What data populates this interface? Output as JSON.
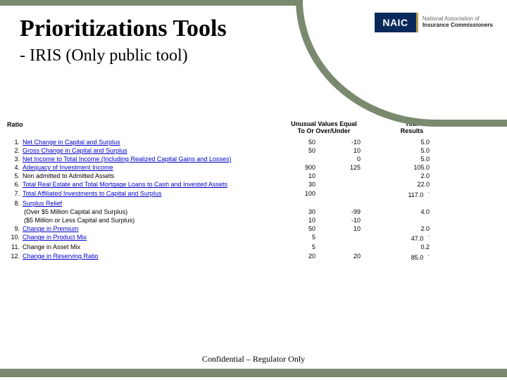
{
  "header": {
    "title": "Prioritizations Tools",
    "subtitle": "- IRIS (Only public tool)",
    "logo_mark": "NAIC",
    "logo_line1": "National Association of",
    "logo_line2": "Insurance Commissioners"
  },
  "table": {
    "ratio_label": "Ratio",
    "unusual_header_l1": "Unusual Values Equal",
    "unusual_header_l2": "To Or Over/Under",
    "results_header_l1": "Your",
    "results_header_l2": "Results",
    "rows": [
      {
        "num": "1.",
        "label": "Net Change in Capital and Surplus",
        "link": true,
        "over": "50",
        "under": "-10",
        "result": "5.0",
        "dash": false
      },
      {
        "num": "2.",
        "label": "Gross Change in Capital and Surplus",
        "link": true,
        "over": "50",
        "under": "10",
        "result": "5.0",
        "dash": false
      },
      {
        "num": "3.",
        "label": "Net Income to Total Income (Including Realized Capital Gains and Losses)",
        "link": true,
        "over": "",
        "under": "0",
        "result": "5.0",
        "dash": false
      },
      {
        "num": "4.",
        "label": "Adequacy of Investment Income",
        "link": true,
        "over": "900",
        "under": "125",
        "result": "105.0",
        "dash": false
      },
      {
        "num": "5.",
        "label": "Non admitted to Admitted Assets",
        "link": false,
        "over": "10",
        "under": "",
        "result": "2.0",
        "dash": false
      },
      {
        "num": "6.",
        "label": "Total Real Estate and Total Mortgage Loans to Cash and Invested Assets",
        "link": true,
        "over": "30",
        "under": "",
        "result": "22.0",
        "dash": false
      },
      {
        "num": "7.",
        "label": "Total Affiliated Investments to Capital and Surplus",
        "link": true,
        "over": "100",
        "under": "",
        "result": "117.0",
        "dash": true
      },
      {
        "num": "8.",
        "label": "Surplus Relief",
        "link": true,
        "over": "",
        "under": "",
        "result": "",
        "dash": false
      },
      {
        "num": "",
        "label": "(Over $5 Million Capital and Surplus)",
        "link": false,
        "indent": true,
        "over": "30",
        "under": "-99",
        "result": "4.0",
        "dash": false
      },
      {
        "num": "",
        "label": "($5 Million or Less Capital and Surplus)",
        "link": false,
        "indent": true,
        "over": "10",
        "under": "-10",
        "result": "",
        "dash": false
      },
      {
        "num": "9.",
        "label": "Change in Premium",
        "link": true,
        "over": "50",
        "under": "10",
        "result": "2.0",
        "dash": false
      },
      {
        "num": "10.",
        "label": "Change in Product Mix",
        "link": true,
        "over": "5",
        "under": "",
        "result": "47.0",
        "dash": true
      },
      {
        "num": "11.",
        "label": "Change in Asset Mix",
        "link": false,
        "over": "5",
        "under": "",
        "result": "0.2",
        "dash": false
      },
      {
        "num": "12.",
        "label": "Change in Reserving Ratio",
        "link": true,
        "over": "20",
        "under": "20",
        "result": "85.0",
        "dash": true
      }
    ]
  },
  "footer": "Confidential – Regulator Only",
  "colors": {
    "accent": "#7a8a6f",
    "link": "#0000cc",
    "logo_bg": "#0a2a5c",
    "logo_trim": "#b89a4a"
  }
}
